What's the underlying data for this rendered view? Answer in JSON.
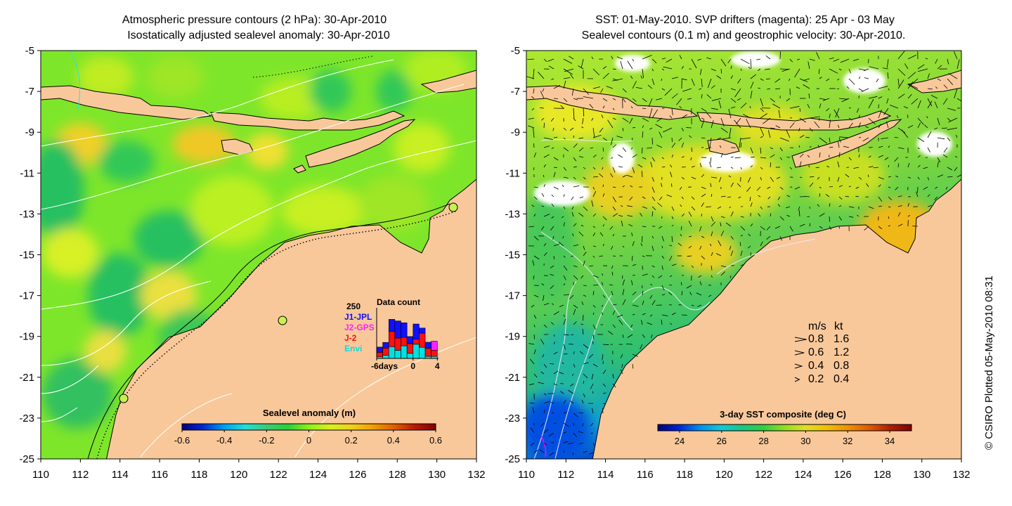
{
  "left_panel": {
    "title_line1": "Atmospheric pressure contours (2 hPa): 30-Apr-2010",
    "title_line2": "Isostatically adjusted sealevel anomaly: 30-Apr-2010",
    "colorbar": {
      "title": "Sealevel anomaly (m)",
      "ticks": [
        "-0.6",
        "-0.4",
        "-0.2",
        "0",
        "0.2",
        "0.4",
        "0.6"
      ],
      "colors": [
        "#00007a",
        "#0028d6",
        "#00a0f0",
        "#20e0d8",
        "#40c878",
        "#26d03a",
        "#8cf01a",
        "#d8f020",
        "#f0d020",
        "#f0a000",
        "#e06000",
        "#b81a00",
        "#800000"
      ]
    },
    "data_count_inset": {
      "title": "Data count",
      "ymax_label": "250",
      "legend": [
        {
          "label": "J1-JPL",
          "color": "#1010ff"
        },
        {
          "label": "J2-GPS",
          "color": "#ff20ff"
        },
        {
          "label": "J-2",
          "color": "#ff1010"
        },
        {
          "label": "Envi",
          "color": "#00e0e0"
        }
      ],
      "x_labels": [
        "-6days",
        "0",
        "4"
      ],
      "x_tick_values": [
        -6,
        0,
        4
      ],
      "x_range": [
        -6,
        4
      ],
      "y_max": 250,
      "bars": [
        {
          "day": -6,
          "envi": 8,
          "j2": 22,
          "j2gps": 0,
          "j1": 26
        },
        {
          "day": -5,
          "envi": 16,
          "j2": 35,
          "j2gps": 0,
          "j1": 28
        },
        {
          "day": -4,
          "envi": 58,
          "j2": 75,
          "j2gps": 0,
          "j1": 60
        },
        {
          "day": -3,
          "envi": 40,
          "j2": 60,
          "j2gps": 0,
          "j1": 85
        },
        {
          "day": -2,
          "envi": 62,
          "j2": 42,
          "j2gps": 0,
          "j1": 72
        },
        {
          "day": -1,
          "envi": 25,
          "j2": 48,
          "j2gps": 0,
          "j1": 35
        },
        {
          "day": 0,
          "envi": 70,
          "j2": 25,
          "j2gps": 0,
          "j1": 75
        },
        {
          "day": 1,
          "envi": 55,
          "j2": 70,
          "j2gps": 0,
          "j1": 25
        },
        {
          "day": 2,
          "envi": 10,
          "j2": 40,
          "j2gps": 0,
          "j1": 30
        },
        {
          "day": 3,
          "envi": 10,
          "j2": 30,
          "j2gps": 45,
          "j1": 0
        }
      ]
    }
  },
  "right_panel": {
    "title_line1": "SST: 01-May-2010. SVP drifters (magenta): 25 Apr - 03 May",
    "title_line2": "Sealevel contours (0.1 m) and geostrophic velocity: 30-Apr-2010.",
    "colorbar": {
      "title": "3-day SST composite (deg C)",
      "ticks": [
        "24",
        "26",
        "28",
        "30",
        "32",
        "34"
      ],
      "colors": [
        "#00007a",
        "#0024d8",
        "#0090f0",
        "#10c8d8",
        "#18c880",
        "#30d040",
        "#90e020",
        "#e0e020",
        "#f0c000",
        "#f09000",
        "#e05a00",
        "#b41c00",
        "#800000"
      ]
    },
    "velocity_legend": {
      "header_ms": "m/s",
      "header_kt": "kt",
      "rows": [
        {
          "ms": "0.8",
          "kt": "1.6",
          "speed": 0.8
        },
        {
          "ms": "0.6",
          "kt": "1.2",
          "speed": 0.6
        },
        {
          "ms": "0.4",
          "kt": "0.8",
          "speed": 0.4
        },
        {
          "ms": "0.2",
          "kt": "0.4",
          "speed": 0.2
        }
      ]
    }
  },
  "axes": {
    "lon_range": [
      110,
      132
    ],
    "lat_range": [
      -25,
      -5
    ],
    "x_ticks": [
      "110",
      "112",
      "114",
      "116",
      "118",
      "120",
      "122",
      "124",
      "126",
      "128",
      "130",
      "132"
    ],
    "y_ticks": [
      "-5",
      "-7",
      "-9",
      "-11",
      "-13",
      "-15",
      "-17",
      "-19",
      "-21",
      "-23",
      "-25"
    ]
  },
  "credit": "© CSIRO Plotted 05-May-2010 08:31",
  "colors": {
    "land": "#f9c89a",
    "sea_level_base": "#7ee62a",
    "sst_base": "#86e63a",
    "contour_white": "#ffffff",
    "drifter_magenta": "#ff00ff"
  }
}
